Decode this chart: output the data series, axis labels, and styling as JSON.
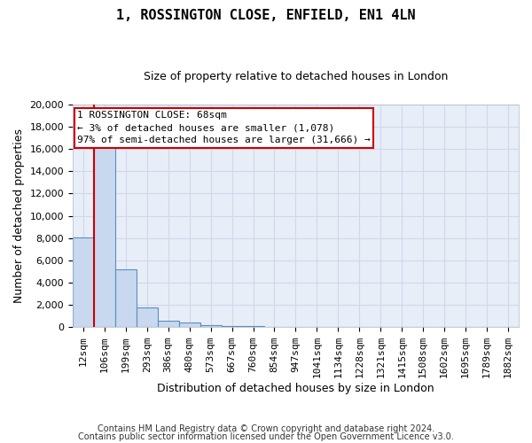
{
  "title": "1, ROSSINGTON CLOSE, ENFIELD, EN1 4LN",
  "subtitle": "Size of property relative to detached houses in London",
  "xlabel": "Distribution of detached houses by size in London",
  "ylabel": "Number of detached properties",
  "categories": [
    "12sqm",
    "106sqm",
    "199sqm",
    "293sqm",
    "386sqm",
    "480sqm",
    "573sqm",
    "667sqm",
    "760sqm",
    "854sqm",
    "947sqm",
    "1041sqm",
    "1134sqm",
    "1228sqm",
    "1321sqm",
    "1415sqm",
    "1508sqm",
    "1602sqm",
    "1695sqm",
    "1789sqm",
    "1882sqm"
  ],
  "values": [
    8100,
    16500,
    5200,
    1750,
    600,
    400,
    200,
    150,
    100,
    50,
    30,
    0,
    0,
    0,
    0,
    0,
    0,
    0,
    0,
    0,
    0
  ],
  "bar_color": "#c8d8ee",
  "bar_edge_color": "#5a8fc0",
  "annotation_box_text": "1 ROSSINGTON CLOSE: 68sqm\n← 3% of detached houses are smaller (1,078)\n97% of semi-detached houses are larger (31,666) →",
  "annotation_box_color": "#cc0000",
  "property_line_x": 0,
  "ylim": [
    0,
    20000
  ],
  "yticks": [
    0,
    2000,
    4000,
    6000,
    8000,
    10000,
    12000,
    14000,
    16000,
    18000,
    20000
  ],
  "footnote1": "Contains HM Land Registry data © Crown copyright and database right 2024.",
  "footnote2": "Contains public sector information licensed under the Open Government Licence v3.0.",
  "background_color": "#e8eef8",
  "grid_color": "#d0d8e8",
  "title_fontsize": 11,
  "subtitle_fontsize": 9,
  "xlabel_fontsize": 9,
  "ylabel_fontsize": 9,
  "tick_fontsize": 8,
  "annotation_fontsize": 8,
  "footnote_fontsize": 7
}
